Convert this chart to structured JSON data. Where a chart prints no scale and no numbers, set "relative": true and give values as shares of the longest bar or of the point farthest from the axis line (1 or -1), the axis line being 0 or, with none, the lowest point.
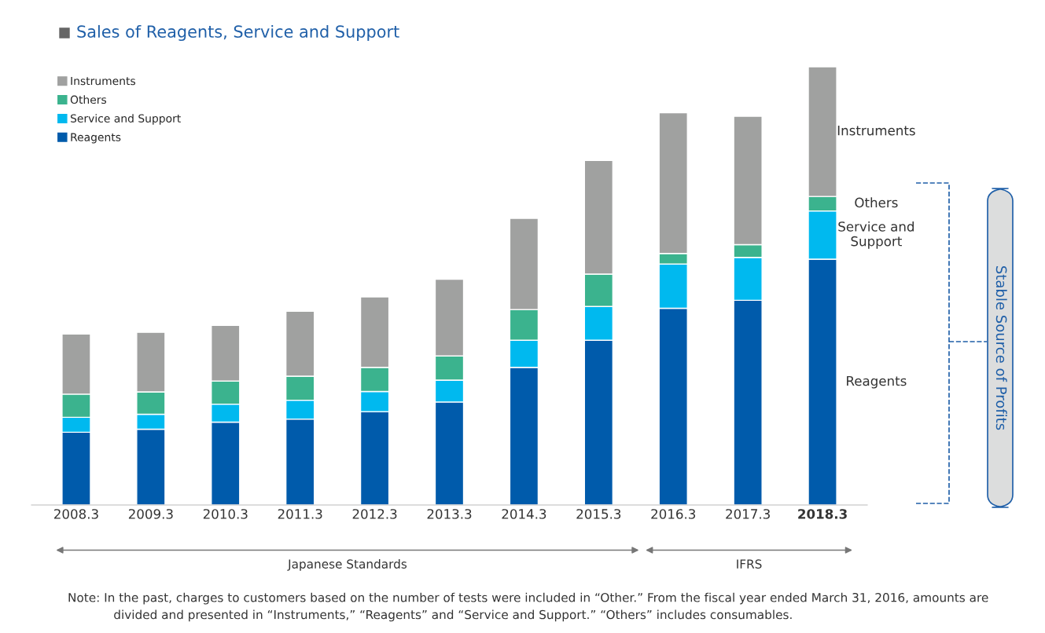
{
  "chart_data": {
    "type": "bar",
    "title": "Sales of Reagents, Service and Support",
    "categories": [
      "2008.3",
      "2009.3",
      "2010.3",
      "2011.3",
      "2012.3",
      "2013.3",
      "2014.3",
      "2015.3",
      "2016.3",
      "2017.3",
      "2018.3"
    ],
    "stacked": true,
    "relative": true,
    "legend": "top left",
    "grid": false,
    "series": [
      {
        "name": "Reagents",
        "color": "#005bab",
        "values": [
          0.166,
          0.173,
          0.189,
          0.196,
          0.213,
          0.235,
          0.314,
          0.376,
          0.449,
          0.467,
          0.561
        ]
      },
      {
        "name": "Service and Support",
        "color": "#00b9ef",
        "values": [
          0.034,
          0.034,
          0.041,
          0.043,
          0.046,
          0.05,
          0.062,
          0.077,
          0.101,
          0.098,
          0.11
        ]
      },
      {
        "name": "Others",
        "color": "#3bb38e",
        "values": [
          0.053,
          0.051,
          0.053,
          0.055,
          0.055,
          0.055,
          0.07,
          0.074,
          0.024,
          0.029,
          0.033
        ]
      },
      {
        "name": "Instruments",
        "color": "#a0a1a0",
        "values": [
          0.137,
          0.136,
          0.127,
          0.148,
          0.161,
          0.175,
          0.208,
          0.259,
          0.321,
          0.293,
          0.296
        ]
      }
    ],
    "annotations": [
      "Reagents",
      "Service and\nSupport",
      "Others",
      "Instruments",
      "Stable Source of Profits",
      "Japanese Standards",
      "IFRS",
      "Note: In the past, charges to customers based on the number of tests were included in “Other.” From the fiscal year ended March 31, 2016, amounts are\n            divided and presented in “Instruments,” “Reagents” and “Service and Support.” “Others” includes consumables."
    ]
  }
}
